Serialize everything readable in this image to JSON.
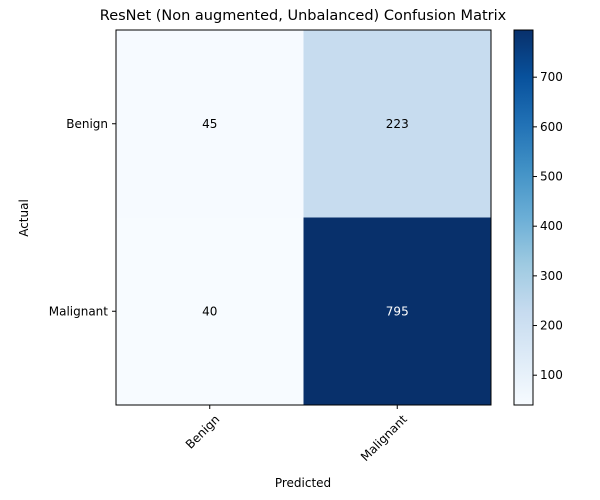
{
  "chart_data": {
    "type": "heatmap",
    "title": "ResNet (Non augmented, Unbalanced) Confusion Matrix",
    "xlabel": "Predicted",
    "ylabel": "Actual",
    "x_categories": [
      "Benign",
      "Malignant"
    ],
    "y_categories": [
      "Benign",
      "Malignant"
    ],
    "values": [
      [
        45,
        223
      ],
      [
        40,
        795
      ]
    ],
    "colormap": "Blues",
    "colormap_stops": [
      "#f7fbff",
      "#deebf7",
      "#c6dbef",
      "#9ecae1",
      "#6baed6",
      "#4292c6",
      "#2171b5",
      "#08519c",
      "#08306b"
    ],
    "color_range": [
      40,
      795
    ],
    "colorbar_ticks": [
      100,
      200,
      300,
      400,
      500,
      600,
      700
    ],
    "annotation_colors": {
      "light": "#000000",
      "dark": "#ffffff"
    },
    "grid": false
  }
}
